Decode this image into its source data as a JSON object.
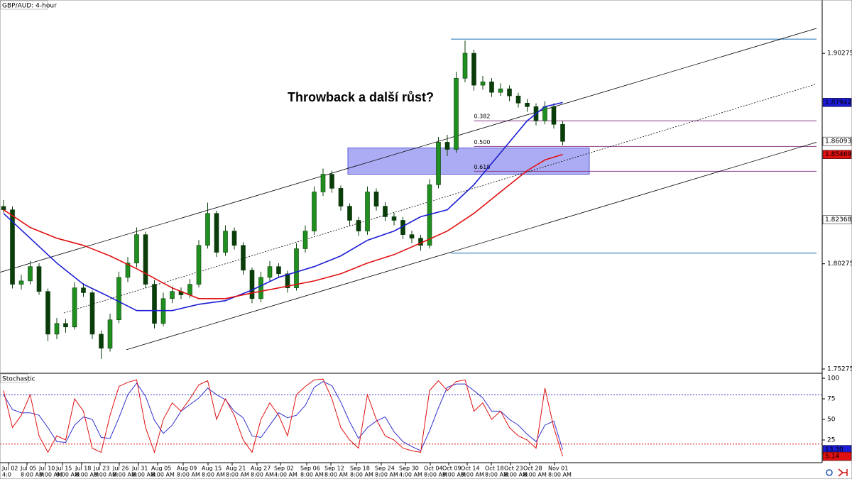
{
  "chart_data": [
    {
      "type": "candlestick",
      "title": "GBP/AUD: 4-hour",
      "annotation": "Throwback a další růst?",
      "xlim": [
        -0.4,
        91.76
      ],
      "ylim": [
        1.75072,
        1.92809
      ],
      "yticks": [
        1.90275,
        1.80275,
        1.75275
      ],
      "up_color": "#1f8f1f",
      "down_color": "#0a3d0a",
      "ohlc": [
        [
          1.83,
          1.833,
          1.827,
          1.8284
        ],
        [
          1.8284,
          1.83,
          1.791,
          1.793
        ],
        [
          1.793,
          1.7975,
          1.7905,
          1.7946
        ],
        [
          1.7946,
          1.804,
          1.793,
          1.8014
        ],
        [
          1.8014,
          1.803,
          1.788,
          1.7896
        ],
        [
          1.7896,
          1.791,
          1.766,
          1.7693
        ],
        [
          1.7693,
          1.777,
          1.767,
          1.7744
        ],
        [
          1.7744,
          1.7765,
          1.77,
          1.7727
        ],
        [
          1.7727,
          1.794,
          1.7715,
          1.7913
        ],
        [
          1.7913,
          1.7935,
          1.787,
          1.789
        ],
        [
          1.789,
          1.79,
          1.767,
          1.7693
        ],
        [
          1.7693,
          1.771,
          1.7575,
          1.7626
        ],
        [
          1.7626,
          1.779,
          1.761,
          1.7761
        ],
        [
          1.7761,
          1.799,
          1.7745,
          1.7963
        ],
        [
          1.7963,
          1.806,
          1.794,
          1.8031
        ],
        [
          1.8031,
          1.82,
          1.801,
          1.8166
        ],
        [
          1.8166,
          1.818,
          1.791,
          1.793
        ],
        [
          1.793,
          1.795,
          1.772,
          1.7744
        ],
        [
          1.7744,
          1.789,
          1.773,
          1.7862
        ],
        [
          1.7862,
          1.792,
          1.784,
          1.7896
        ],
        [
          1.7896,
          1.7915,
          1.786,
          1.788
        ],
        [
          1.788,
          1.7955,
          1.7865,
          1.793
        ],
        [
          1.793,
          1.814,
          1.7915,
          1.8115
        ],
        [
          1.8115,
          1.8318,
          1.81,
          1.8267
        ],
        [
          1.8267,
          1.828,
          1.806,
          1.8082
        ],
        [
          1.8082,
          1.821,
          1.8065,
          1.8183
        ],
        [
          1.8183,
          1.82,
          1.8095,
          1.8115
        ],
        [
          1.8115,
          1.813,
          1.7975,
          1.7997
        ],
        [
          1.7997,
          1.801,
          1.784,
          1.7862
        ],
        [
          1.7862,
          1.799,
          1.7845,
          1.7963
        ],
        [
          1.7963,
          1.804,
          1.7945,
          1.8014
        ],
        [
          1.8014,
          1.803,
          1.796,
          1.798
        ],
        [
          1.798,
          1.7995,
          1.789,
          1.7913
        ],
        [
          1.7913,
          1.8125,
          1.79,
          1.8099
        ],
        [
          1.8099,
          1.821,
          1.808,
          1.8183
        ],
        [
          1.8183,
          1.8395,
          1.8165,
          1.8369
        ],
        [
          1.8369,
          1.848,
          1.835,
          1.8453
        ],
        [
          1.8453,
          1.847,
          1.8365,
          1.8386
        ],
        [
          1.8386,
          1.84,
          1.828,
          1.8301
        ],
        [
          1.8301,
          1.8315,
          1.821,
          1.8234
        ],
        [
          1.8234,
          1.825,
          1.816,
          1.8183
        ],
        [
          1.8183,
          1.8395,
          1.8165,
          1.8369
        ],
        [
          1.8369,
          1.8385,
          1.828,
          1.8301
        ],
        [
          1.8301,
          1.832,
          1.823,
          1.8251
        ],
        [
          1.8251,
          1.827,
          1.821,
          1.8234
        ],
        [
          1.8234,
          1.825,
          1.8145,
          1.8166
        ],
        [
          1.8166,
          1.8185,
          1.8125,
          1.8149
        ],
        [
          1.8149,
          1.8165,
          1.809,
          1.8115
        ],
        [
          1.8115,
          1.843,
          1.81,
          1.8403
        ],
        [
          1.8403,
          1.863,
          1.8385,
          1.8605
        ],
        [
          1.8605,
          1.864,
          1.854,
          1.8571
        ],
        [
          1.8571,
          1.894,
          1.8555,
          1.8909
        ],
        [
          1.8909,
          1.9088,
          1.889,
          1.9028
        ],
        [
          1.9028,
          1.9045,
          1.885,
          1.8876
        ],
        [
          1.8876,
          1.892,
          1.8855,
          1.8892
        ],
        [
          1.8892,
          1.891,
          1.882,
          1.8842
        ],
        [
          1.8842,
          1.8885,
          1.8825,
          1.8859
        ],
        [
          1.8859,
          1.8875,
          1.88,
          1.8825
        ],
        [
          1.8825,
          1.884,
          1.877,
          1.8791
        ],
        [
          1.8791,
          1.881,
          1.875,
          1.8774
        ],
        [
          1.8774,
          1.879,
          1.8685,
          1.8707
        ],
        [
          1.8707,
          1.88,
          1.869,
          1.8774
        ],
        [
          1.8774,
          1.879,
          1.867,
          1.869
        ],
        [
          1.869,
          1.8705,
          1.859,
          1.8609
        ]
      ],
      "series": [
        {
          "color": "#1c1cd6",
          "x": [
            0,
            3,
            6,
            9,
            12,
            15,
            19,
            22,
            25,
            28,
            31,
            35,
            38,
            41,
            44,
            47,
            50,
            53,
            56,
            59,
            61,
            63
          ],
          "values": [
            1.8267,
            1.8149,
            1.8031,
            1.793,
            1.7869,
            1.7805,
            1.7805,
            1.7835,
            1.7852,
            1.7903,
            1.7963,
            1.8014,
            1.8065,
            1.8139,
            1.8183,
            1.8251,
            1.8284,
            1.8403,
            1.8555,
            1.8707,
            1.8774,
            1.8794
          ]
        },
        {
          "color": "#e01010",
          "x": [
            0,
            3,
            6,
            9,
            12,
            15,
            19,
            22,
            25,
            28,
            31,
            35,
            38,
            41,
            44,
            47,
            50,
            53,
            56,
            59,
            61,
            63
          ],
          "values": [
            1.8284,
            1.82,
            1.8149,
            1.8115,
            1.8065,
            1.8004,
            1.7913,
            1.7862,
            1.7862,
            1.7889,
            1.7913,
            1.7946,
            1.798,
            1.8031,
            1.8071,
            1.8126,
            1.8183,
            1.8267,
            1.8369,
            1.847,
            1.8521,
            1.8547
          ]
        }
      ],
      "channel": [
        {
          "x": [
            -0.4,
            91.6
          ],
          "y": [
            1.7987,
            1.9146
          ],
          "style": "solid"
        },
        {
          "x": [
            6.8,
            91.6
          ],
          "y": [
            1.7794,
            1.8882
          ],
          "style": "dashed"
        },
        {
          "x": [
            13.84,
            91.6
          ],
          "y": [
            1.7619,
            1.8605
          ],
          "style": "solid"
        }
      ],
      "hlines": [
        {
          "value": 1.9095,
          "x": [
            50.4,
            91.6
          ],
          "color": "#1f6fb0"
        },
        {
          "value": 1.8078,
          "x": [
            50.4,
            91.6
          ],
          "color": "#1f6fb0"
        }
      ],
      "fib": [
        {
          "label": "0.382",
          "value": 1.8707
        },
        {
          "label": "0.500",
          "value": 1.8585
        },
        {
          "label": "0.618",
          "value": 1.8467
        }
      ],
      "fib_x": [
        53,
        91.6
      ],
      "fib_color": "#8a3d8a",
      "zone": {
        "x": [
          38.8,
          66
        ],
        "y": [
          1.8453,
          1.8578
        ],
        "color": "#9d9df2"
      },
      "price_tags": [
        {
          "value": 1.87942,
          "color": "#1c1cd6",
          "text_color": "#ffffff"
        },
        {
          "value": 1.86093,
          "color": "#ffffff",
          "text_color": "#000000"
        },
        {
          "value": 1.85469,
          "color": "#e01010",
          "text_color": "#ffffff"
        },
        {
          "value": 1.82368,
          "color": "#ffffff",
          "text_color": "#000000"
        }
      ]
    },
    {
      "type": "line",
      "title": "Stochastic",
      "xlim": [
        -0.4,
        91.76
      ],
      "ylim": [
        -2.6,
        105.2
      ],
      "yticks": [
        100,
        75,
        50,
        25
      ],
      "levels": [
        {
          "value": 80,
          "color": "#3333cc"
        },
        {
          "value": 20,
          "color": "#cc0000"
        }
      ],
      "series": [
        {
          "color": "#3030d0",
          "values": [
            80,
            62,
            58,
            58,
            55,
            40,
            23,
            22,
            43,
            53,
            50,
            28,
            27,
            52,
            80,
            94,
            78,
            49,
            33,
            43,
            60,
            68,
            76,
            88,
            80,
            74,
            60,
            52,
            30,
            28,
            43,
            58,
            52,
            55,
            67,
            89,
            96,
            91,
            71,
            47,
            27,
            40,
            48,
            53,
            35,
            23,
            17,
            12,
            36,
            64,
            89,
            93,
            93,
            85,
            76,
            60,
            60,
            50,
            43,
            32,
            23,
            43,
            48,
            13.3
          ]
        },
        {
          "color": "#e01010",
          "values": [
            85,
            40,
            55,
            80,
            30,
            10,
            30,
            25,
            75,
            60,
            15,
            10,
            55,
            90,
            95,
            98,
            40,
            10,
            50,
            70,
            60,
            75,
            92,
            97,
            50,
            75,
            55,
            25,
            10,
            50,
            70,
            55,
            30,
            80,
            90,
            98,
            99,
            75,
            40,
            25,
            15,
            80,
            50,
            30,
            25,
            15,
            12,
            10,
            85,
            97,
            85,
            96,
            98,
            60,
            70,
            50,
            60,
            40,
            30,
            25,
            15,
            88,
            40,
            5.14
          ]
        }
      ],
      "price_tags": [
        {
          "value": 13.3,
          "label": "13.30",
          "color": "#1c1cd6",
          "text_color": "#ffffff"
        },
        {
          "value": 5.14,
          "color": "#e01010",
          "text_color": "#ffffff"
        }
      ],
      "xticks": [
        {
          "value": 0.56,
          "label": "Jul 02"
        },
        {
          "value": 2.64,
          "label": "Jul 05"
        },
        {
          "value": 4.72,
          "label": "Jul 10"
        },
        {
          "value": 6.64,
          "label": "Jul 15"
        },
        {
          "value": 8.8,
          "label": "Jul 18"
        },
        {
          "value": 10.88,
          "label": "Jul 23"
        },
        {
          "value": 13.04,
          "label": "Jul 26"
        },
        {
          "value": 15.2,
          "label": "Jul 31"
        },
        {
          "value": 17.36,
          "label": "Aug 05"
        },
        {
          "value": 20.24,
          "label": "Aug 09"
        },
        {
          "value": 23.04,
          "label": "Aug 15"
        },
        {
          "value": 25.76,
          "label": "Aug 21"
        },
        {
          "value": 28.56,
          "label": "Aug 27"
        },
        {
          "value": 31.2,
          "label": "Sep 02"
        },
        {
          "value": 34.16,
          "label": "Sep 06"
        },
        {
          "value": 36.88,
          "label": "Sep 12"
        },
        {
          "value": 39.76,
          "label": "Sep 18"
        },
        {
          "value": 42.56,
          "label": "Sep 24"
        },
        {
          "value": 45.28,
          "label": "Sep 30"
        },
        {
          "value": 48.08,
          "label": "Oct 04"
        },
        {
          "value": 50.16,
          "label": "Oct 09"
        },
        {
          "value": 52.24,
          "label": "Oct 14"
        },
        {
          "value": 54.96,
          "label": "Oct 18"
        },
        {
          "value": 57.12,
          "label": "Oct 23"
        },
        {
          "value": 59.28,
          "label": "Oct 28"
        },
        {
          "value": 62.08,
          "label": "Nov 01"
        }
      ],
      "xtick_times": [
        "4:0",
        "8:00 AM",
        "8:00 AM",
        "8:00 AM",
        "8:00 AM",
        "8:00 AM",
        "8:00 AM",
        "8:00 AM",
        "8:00 AM",
        "8:00 AM",
        "8:00 AM",
        "8:00 AM",
        "8:00 AM",
        "4:00 AM",
        "8:00 AM",
        "8:00 AM",
        "8:00 AM",
        "8:00 AM",
        "4:00 AM",
        "8:00 AM",
        "8:00 AM",
        "8:00 AM",
        "8:00 AM",
        "8:00 AM",
        "8:00 AM",
        "8:00 AM"
      ]
    }
  ]
}
